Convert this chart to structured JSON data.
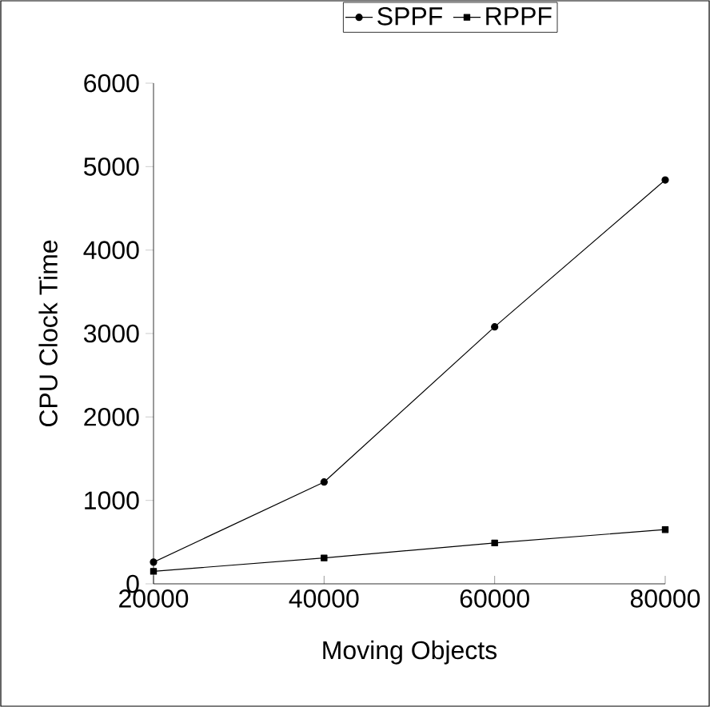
{
  "chart_data": {
    "type": "line",
    "xlabel": "Moving Objects",
    "ylabel": "CPU Clock Time",
    "x": [
      20000,
      40000,
      60000,
      80000
    ],
    "series": [
      {
        "name": "SPPF",
        "color": "#000000",
        "marker": "circle",
        "values": [
          260,
          1220,
          3080,
          4840
        ]
      },
      {
        "name": "RPPF",
        "color": "#000000",
        "marker": "square",
        "values": [
          150,
          310,
          490,
          650
        ]
      }
    ],
    "xlim": [
      20000,
      80000
    ],
    "xticks": [
      20000,
      40000,
      60000,
      80000
    ],
    "ylim": [
      0,
      6000
    ],
    "yticks": [
      0,
      1000,
      2000,
      3000,
      4000,
      5000,
      6000
    ],
    "legend": "top",
    "line_style": "solid"
  }
}
